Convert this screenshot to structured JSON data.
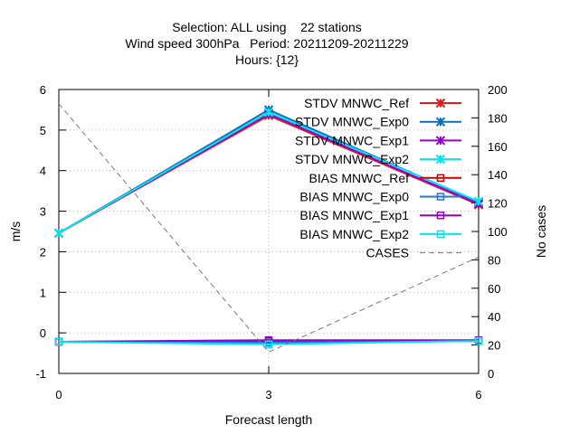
{
  "chart_data": {
    "type": "line",
    "title_lines": [
      "Selection: ALL using    22 stations",
      "Wind speed 300hPa   Period: 20211209-20211229",
      "Hours: {12}"
    ],
    "xlabel": "Forecast length",
    "ylabel": "m/s",
    "y2label": "No cases",
    "x": [
      0,
      3,
      6
    ],
    "xlim": [
      0,
      6
    ],
    "ylim": [
      -1,
      6
    ],
    "y2lim": [
      0,
      200
    ],
    "xticks": [
      0,
      3,
      6
    ],
    "yticks": [
      -1,
      0,
      1,
      2,
      3,
      4,
      5,
      6
    ],
    "y2ticks": [
      0,
      20,
      40,
      60,
      80,
      100,
      120,
      140,
      160,
      180,
      200
    ],
    "grid": true,
    "legend_position": "top-right",
    "series": [
      {
        "name": "STDV MNWC_Ref",
        "values": [
          2.46,
          5.36,
          3.16
        ],
        "color": "#e41a1c",
        "marker": "x-star",
        "axis": "y"
      },
      {
        "name": "STDV MNWC_Exp0",
        "values": [
          2.46,
          5.5,
          3.22
        ],
        "color": "#0d6fb8",
        "marker": "x-star",
        "axis": "y"
      },
      {
        "name": "STDV MNWC_Exp1",
        "values": [
          2.46,
          5.4,
          3.18
        ],
        "color": "#9400d3",
        "marker": "x-star",
        "axis": "y"
      },
      {
        "name": "STDV MNWC_Exp2",
        "values": [
          2.46,
          5.44,
          3.24
        ],
        "color": "#00e5ee",
        "marker": "x-star",
        "axis": "y"
      },
      {
        "name": "BIAS MNWC_Ref",
        "values": [
          -0.22,
          -0.2,
          -0.2
        ],
        "color": "#cc0000",
        "marker": "square",
        "axis": "y"
      },
      {
        "name": "BIAS MNWC_Exp0",
        "values": [
          -0.22,
          -0.24,
          -0.2
        ],
        "color": "#1f78d1",
        "marker": "square",
        "axis": "y"
      },
      {
        "name": "BIAS MNWC_Exp1",
        "values": [
          -0.22,
          -0.18,
          -0.18
        ],
        "color": "#9400d3",
        "marker": "square",
        "axis": "y"
      },
      {
        "name": "BIAS MNWC_Exp2",
        "values": [
          -0.22,
          -0.28,
          -0.2
        ],
        "color": "#00e5ee",
        "marker": "square",
        "axis": "y"
      },
      {
        "name": "CASES",
        "values": [
          190,
          15,
          82
        ],
        "color": "#777777",
        "marker": "none",
        "dashed": true,
        "axis": "y2"
      }
    ]
  }
}
